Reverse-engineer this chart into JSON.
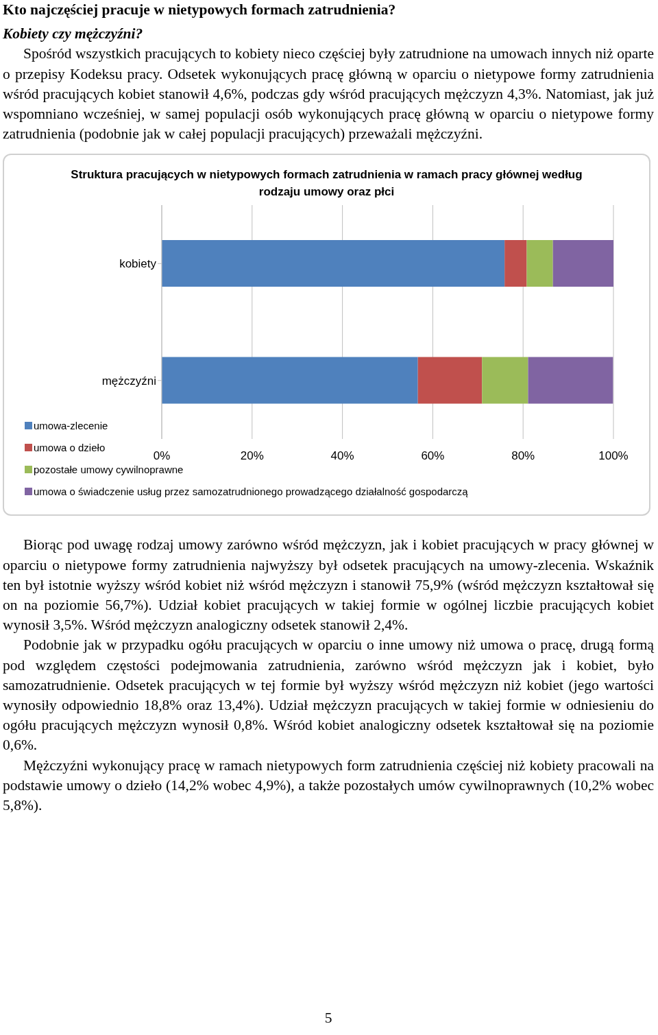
{
  "chart_data": {
    "type": "bar",
    "orientation": "horizontal",
    "stacked": true,
    "title": "Struktura pracujących  w nietypowych formach zatrudnienia w ramach  pracy głównej według rodzaju umowy oraz płci",
    "categories": [
      "kobiety",
      "mężczyźni"
    ],
    "series": [
      {
        "name": "umowa-zlecenie",
        "color": "#4f81bd",
        "values": [
          75.9,
          56.7
        ]
      },
      {
        "name": "umowa o dzieło",
        "color": "#c0504d",
        "values": [
          4.9,
          14.2
        ]
      },
      {
        "name": "pozostałe umowy cywilnoprawne",
        "color": "#9bbb59",
        "values": [
          5.8,
          10.2
        ]
      },
      {
        "name": "umowa o świadczenie usług przez samozatrudnionego prowadzącego działalność gospodarczą",
        "color": "#8064a2",
        "values": [
          13.4,
          18.8
        ]
      }
    ],
    "xlim": [
      0,
      100
    ],
    "xticks": [
      {
        "value": 0,
        "label": "0%"
      },
      {
        "value": 20,
        "label": "20%"
      },
      {
        "value": 40,
        "label": "40%"
      },
      {
        "value": 60,
        "label": "60%"
      },
      {
        "value": 80,
        "label": "80%"
      },
      {
        "value": 100,
        "label": "100%"
      }
    ],
    "grid": "x",
    "legend": "bottom left",
    "annotations": [
      "Kto najczęściej pracuje w nietypowych formach zatrudnienia?",
      "Kobiety czy mężczyźni?",
      "Spośród wszystkich pracujących to kobiety nieco częściej były zatrudnione na umowach innych niż oparte o przepisy Kodeksu pracy. Odsetek wykonujących pracę główną w oparciu o nietypowe formy zatrudnienia wśród pracujących kobiet stanowił 4,6%, podczas gdy wśród pracujących mężczyzn 4,3%. Natomiast, jak już wspomniano wcześniej, w samej populacji osób wykonujących pracę główną w oparciu o nietypowe formy zatrudnienia (podobnie jak w całej populacji pracujących) przeważali mężczyźni.",
      "Biorąc pod uwagę rodzaj umowy zarówno wśród mężczyzn, jak i kobiet pracujących w pracy głównej w oparciu o nietypowe formy zatrudnienia najwyższy był odsetek pracujących na umowy-zlecenia. Wskaźnik ten był istotnie wyższy wśród kobiet niż wśród mężczyzn i stanowił 75,9% (wśród mężczyzn kształtował się on na poziomie 56,7%). Udział kobiet pracujących w takiej formie w ogólnej liczbie pracujących kobiet wynosił 3,5%. Wśród mężczyzn analogiczny odsetek stanowił 2,4%.",
      "Podobnie jak w przypadku ogółu pracujących w oparciu o inne umowy niż umowa o pracę, drugą formą pod względem częstości podejmowania zatrudnienia, zarówno wśród mężczyzn jak i kobiet, było samozatrudnienie. Odsetek pracujących w tej formie był wyższy wśród mężczyzn niż kobiet (jego wartości wynosiły odpowiednio 18,8% oraz 13,4%). Udział mężczyzn pracujących w takiej formie w odniesieniu do ogółu pracujących mężczyzn wynosił 0,8%. Wśród kobiet analogiczny odsetek kształtował się na poziomie 0,6%.",
      "Mężczyźni wykonujący pracę w ramach nietypowych form zatrudnienia częściej niż kobiety pracowali na podstawie umowy o dzieło (14,2% wobec 4,9%), a także pozostałych umów cywilnoprawnych (10,2% wobec 5,8%).",
      "5"
    ]
  }
}
